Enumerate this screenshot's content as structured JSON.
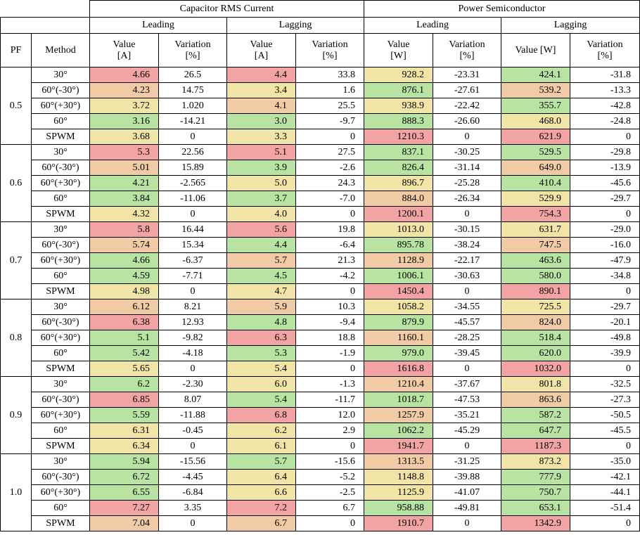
{
  "header": {
    "group_capacitor": "Capacitor  RMS  Current",
    "group_power": "Power  Semiconductor",
    "leading": "Leading",
    "lagging": "Lagging",
    "pf": "PF",
    "method": "Method",
    "value_a_line1": "Value",
    "value_a_line2": "[A]",
    "variation_line1": "Variation",
    "variation_line2": "[%]",
    "value_w_line1": "Value",
    "value_w_line2": "[W]",
    "value_w_inline": "Value  [W]"
  },
  "colors": {
    "red": "#f2a4a4",
    "orange": "#f0cba5",
    "yellow": "#f0e4a7",
    "green": "#b8e3a3"
  },
  "groups": [
    {
      "pf": "0.5",
      "rows": [
        {
          "method": "30°",
          "cap_lead_val": "4.66",
          "cap_lead_var": "26.5",
          "cap_lag_val": "4.4",
          "cap_lag_var": "33.8",
          "pow_lead_val": "928.2",
          "pow_lead_var": "-23.31",
          "pow_lag_val": "424.1",
          "pow_lag_var": "-31.8",
          "c": [
            "red",
            "red",
            "yellow",
            "green"
          ]
        },
        {
          "method": "60°(-30°)",
          "cap_lead_val": "4.23",
          "cap_lead_var": "14.75",
          "cap_lag_val": "3.4",
          "cap_lag_var": "1.6",
          "pow_lead_val": "876.1",
          "pow_lead_var": "-27.61",
          "pow_lag_val": "539.2",
          "pow_lag_var": "-13.3",
          "c": [
            "orange",
            "yellow",
            "green",
            "orange"
          ]
        },
        {
          "method": "60°(+30°)",
          "cap_lead_val": "3.72",
          "cap_lead_var": "1.020",
          "cap_lag_val": "4.1",
          "cap_lag_var": "25.5",
          "pow_lead_val": "938.9",
          "pow_lead_var": "-22.42",
          "pow_lag_val": "355.7",
          "pow_lag_var": "-42.8",
          "c": [
            "yellow",
            "orange",
            "yellow",
            "green"
          ]
        },
        {
          "method": "60°",
          "cap_lead_val": "3.16",
          "cap_lead_var": "-14.21",
          "cap_lag_val": "3.0",
          "cap_lag_var": "-9.7",
          "pow_lead_val": "888.3",
          "pow_lead_var": "-26.60",
          "pow_lag_val": "468.0",
          "pow_lag_var": "-24.8",
          "c": [
            "green",
            "green",
            "green",
            "yellow"
          ]
        },
        {
          "method": "SPWM",
          "cap_lead_val": "3.68",
          "cap_lead_var": "0",
          "cap_lag_val": "3.3",
          "cap_lag_var": "0",
          "pow_lead_val": "1210.3",
          "pow_lead_var": "0",
          "pow_lag_val": "621.9",
          "pow_lag_var": "0",
          "c": [
            "yellow",
            "yellow",
            "red",
            "red"
          ]
        }
      ]
    },
    {
      "pf": "0.6",
      "rows": [
        {
          "method": "30°",
          "cap_lead_val": "5.3",
          "cap_lead_var": "22.56",
          "cap_lag_val": "5.1",
          "cap_lag_var": "27.5",
          "pow_lead_val": "837.1",
          "pow_lead_var": "-30.25",
          "pow_lag_val": "529.5",
          "pow_lag_var": "-29.8",
          "c": [
            "red",
            "red",
            "green",
            "green"
          ]
        },
        {
          "method": "60°(-30°)",
          "cap_lead_val": "5.01",
          "cap_lead_var": "15.89",
          "cap_lag_val": "3.9",
          "cap_lag_var": "-2.6",
          "pow_lead_val": "826.4",
          "pow_lead_var": "-31.14",
          "pow_lag_val": "649.0",
          "pow_lag_var": "-13.9",
          "c": [
            "orange",
            "green",
            "green",
            "orange"
          ]
        },
        {
          "method": "60°(+30°)",
          "cap_lead_val": "4.21",
          "cap_lead_var": "-2.565",
          "cap_lag_val": "5.0",
          "cap_lag_var": "24.3",
          "pow_lead_val": "896.7",
          "pow_lead_var": "-25.28",
          "pow_lag_val": "410.4",
          "pow_lag_var": "-45.6",
          "c": [
            "green",
            "yellow",
            "yellow",
            "green"
          ]
        },
        {
          "method": "60°",
          "cap_lead_val": "3.84",
          "cap_lead_var": "-11.06",
          "cap_lag_val": "3.7",
          "cap_lag_var": "-7.0",
          "pow_lead_val": "884.0",
          "pow_lead_var": "-26.34",
          "pow_lag_val": "529.9",
          "pow_lag_var": "-29.7",
          "c": [
            "green",
            "green",
            "orange",
            "yellow"
          ]
        },
        {
          "method": "SPWM",
          "cap_lead_val": "4.32",
          "cap_lead_var": "0",
          "cap_lag_val": "4.0",
          "cap_lag_var": "0",
          "pow_lead_val": "1200.1",
          "pow_lead_var": "0",
          "pow_lag_val": "754.3",
          "pow_lag_var": "0",
          "c": [
            "yellow",
            "yellow",
            "red",
            "red"
          ]
        }
      ]
    },
    {
      "pf": "0.7",
      "rows": [
        {
          "method": "30°",
          "cap_lead_val": "5.8",
          "cap_lead_var": "16.44",
          "cap_lag_val": "5.6",
          "cap_lag_var": "19.8",
          "pow_lead_val": "1013.0",
          "pow_lead_var": "-30.15",
          "pow_lag_val": "631.7",
          "pow_lag_var": "-29.0",
          "c": [
            "red",
            "red",
            "yellow",
            "yellow"
          ]
        },
        {
          "method": "60°(-30°)",
          "cap_lead_val": "5.74",
          "cap_lead_var": "15.34",
          "cap_lag_val": "4.4",
          "cap_lag_var": "-6.4",
          "pow_lead_val": "895.78",
          "pow_lead_var": "-38.24",
          "pow_lag_val": "747.5",
          "pow_lag_var": "-16.0",
          "c": [
            "orange",
            "green",
            "green",
            "orange"
          ]
        },
        {
          "method": "60°(+30°)",
          "cap_lead_val": "4.66",
          "cap_lead_var": "-6.37",
          "cap_lag_val": "5.7",
          "cap_lag_var": "21.3",
          "pow_lead_val": "1128.9",
          "pow_lead_var": "-22.17",
          "pow_lag_val": "463.6",
          "pow_lag_var": "-47.9",
          "c": [
            "green",
            "orange",
            "orange",
            "green"
          ]
        },
        {
          "method": "60°",
          "cap_lead_val": "4.59",
          "cap_lead_var": "-7.71",
          "cap_lag_val": "4.5",
          "cap_lag_var": "-4.2",
          "pow_lead_val": "1006.1",
          "pow_lead_var": "-30.63",
          "pow_lag_val": "580.0",
          "pow_lag_var": "-34.8",
          "c": [
            "green",
            "green",
            "green",
            "green"
          ]
        },
        {
          "method": "SPWM",
          "cap_lead_val": "4.98",
          "cap_lead_var": "0",
          "cap_lag_val": "4.7",
          "cap_lag_var": "0",
          "pow_lead_val": "1450.4",
          "pow_lead_var": "0",
          "pow_lag_val": "890.1",
          "pow_lag_var": "0",
          "c": [
            "yellow",
            "yellow",
            "red",
            "red"
          ]
        }
      ]
    },
    {
      "pf": "0.8",
      "rows": [
        {
          "method": "30°",
          "cap_lead_val": "6.12",
          "cap_lead_var": "8.21",
          "cap_lag_val": "5.9",
          "cap_lag_var": "10.3",
          "pow_lead_val": "1058.2",
          "pow_lead_var": "-34.55",
          "pow_lag_val": "725.5",
          "pow_lag_var": "-29.7",
          "c": [
            "orange",
            "orange",
            "yellow",
            "yellow"
          ]
        },
        {
          "method": "60°(-30°)",
          "cap_lead_val": "6.38",
          "cap_lead_var": "12.93",
          "cap_lag_val": "4.8",
          "cap_lag_var": "-9.4",
          "pow_lead_val": "879.9",
          "pow_lead_var": "-45.57",
          "pow_lag_val": "824.0",
          "pow_lag_var": "-20.1",
          "c": [
            "red",
            "green",
            "green",
            "orange"
          ]
        },
        {
          "method": "60°(+30°)",
          "cap_lead_val": "5.1",
          "cap_lead_var": "-9.82",
          "cap_lag_val": "6.3",
          "cap_lag_var": "18.8",
          "pow_lead_val": "1160.1",
          "pow_lead_var": "-28.25",
          "pow_lag_val": "518.4",
          "pow_lag_var": "-49.8",
          "c": [
            "green",
            "red",
            "orange",
            "green"
          ]
        },
        {
          "method": "60°",
          "cap_lead_val": "5.42",
          "cap_lead_var": "-4.18",
          "cap_lag_val": "5.3",
          "cap_lag_var": "-1.9",
          "pow_lead_val": "979.0",
          "pow_lead_var": "-39.45",
          "pow_lag_val": "620.0",
          "pow_lag_var": "-39.9",
          "c": [
            "green",
            "green",
            "green",
            "green"
          ]
        },
        {
          "method": "SPWM",
          "cap_lead_val": "5.65",
          "cap_lead_var": "0",
          "cap_lag_val": "5.4",
          "cap_lag_var": "0",
          "pow_lead_val": "1616.8",
          "pow_lead_var": "0",
          "pow_lag_val": "1032.0",
          "pow_lag_var": "0",
          "c": [
            "yellow",
            "yellow",
            "red",
            "red"
          ]
        }
      ]
    },
    {
      "pf": "0.9",
      "rows": [
        {
          "method": "30°",
          "cap_lead_val": "6.2",
          "cap_lead_var": "-2.30",
          "cap_lag_val": "6.0",
          "cap_lag_var": "-1.3",
          "pow_lead_val": "1210.4",
          "pow_lead_var": "-37.67",
          "pow_lag_val": "801.8",
          "pow_lag_var": "-32.5",
          "c": [
            "green",
            "yellow",
            "orange",
            "yellow"
          ]
        },
        {
          "method": "60°(-30°)",
          "cap_lead_val": "6.85",
          "cap_lead_var": "8.07",
          "cap_lag_val": "5.4",
          "cap_lag_var": "-11.7",
          "pow_lead_val": "1018.7",
          "pow_lead_var": "-47.53",
          "pow_lag_val": "863.6",
          "pow_lag_var": "-27.3",
          "c": [
            "red",
            "green",
            "green",
            "orange"
          ]
        },
        {
          "method": "60°(+30°)",
          "cap_lead_val": "5.59",
          "cap_lead_var": "-11.88",
          "cap_lag_val": "6.8",
          "cap_lag_var": "12.0",
          "pow_lead_val": "1257.9",
          "pow_lead_var": "-35.21",
          "pow_lag_val": "587.2",
          "pow_lag_var": "-50.5",
          "c": [
            "green",
            "red",
            "orange",
            "green"
          ]
        },
        {
          "method": "60°",
          "cap_lead_val": "6.31",
          "cap_lead_var": "-0.45",
          "cap_lag_val": "6.2",
          "cap_lag_var": "2.9",
          "pow_lead_val": "1062.2",
          "pow_lead_var": "-45.29",
          "pow_lag_val": "647.7",
          "pow_lag_var": "-45.5",
          "c": [
            "yellow",
            "yellow",
            "green",
            "green"
          ]
        },
        {
          "method": "SPWM",
          "cap_lead_val": "6.34",
          "cap_lead_var": "0",
          "cap_lag_val": "6.1",
          "cap_lag_var": "0",
          "pow_lead_val": "1941.7",
          "pow_lead_var": "0",
          "pow_lag_val": "1187.3",
          "pow_lag_var": "0",
          "c": [
            "yellow",
            "yellow",
            "red",
            "red"
          ]
        }
      ]
    },
    {
      "pf": "1.0",
      "rows": [
        {
          "method": "30°",
          "cap_lead_val": "5.94",
          "cap_lead_var": "-15.56",
          "cap_lag_val": "5.7",
          "cap_lag_var": "-15.6",
          "pow_lead_val": "1313.5",
          "pow_lead_var": "-31.25",
          "pow_lag_val": "873.2",
          "pow_lag_var": "-35.0",
          "c": [
            "green",
            "green",
            "orange",
            "yellow"
          ]
        },
        {
          "method": "60°(-30°)",
          "cap_lead_val": "6.72",
          "cap_lead_var": "-4.45",
          "cap_lag_val": "6.4",
          "cap_lag_var": "-5.2",
          "pow_lead_val": "1148.8",
          "pow_lead_var": "-39.88",
          "pow_lag_val": "777.9",
          "pow_lag_var": "-42.1",
          "c": [
            "green",
            "yellow",
            "yellow",
            "green"
          ]
        },
        {
          "method": "60°(+30°)",
          "cap_lead_val": "6.55",
          "cap_lead_var": "-6.84",
          "cap_lag_val": "6.6",
          "cap_lag_var": "-2.5",
          "pow_lead_val": "1125.9",
          "pow_lead_var": "-41.07",
          "pow_lag_val": "750.7",
          "pow_lag_var": "-44.1",
          "c": [
            "green",
            "yellow",
            "yellow",
            "green"
          ]
        },
        {
          "method": "60°",
          "cap_lead_val": "7.27",
          "cap_lead_var": "3.35",
          "cap_lag_val": "7.2",
          "cap_lag_var": "6.7",
          "pow_lead_val": "958.88",
          "pow_lead_var": "-49.81",
          "pow_lag_val": "653.1",
          "pow_lag_var": "-51.4",
          "c": [
            "red",
            "red",
            "green",
            "green"
          ]
        },
        {
          "method": "SPWM",
          "cap_lead_val": "7.04",
          "cap_lead_var": "0",
          "cap_lag_val": "6.7",
          "cap_lag_var": "0",
          "pow_lead_val": "1910.7",
          "pow_lead_var": "0",
          "pow_lag_val": "1342.9",
          "pow_lag_var": "0",
          "c": [
            "orange",
            "orange",
            "red",
            "red"
          ]
        }
      ]
    }
  ]
}
